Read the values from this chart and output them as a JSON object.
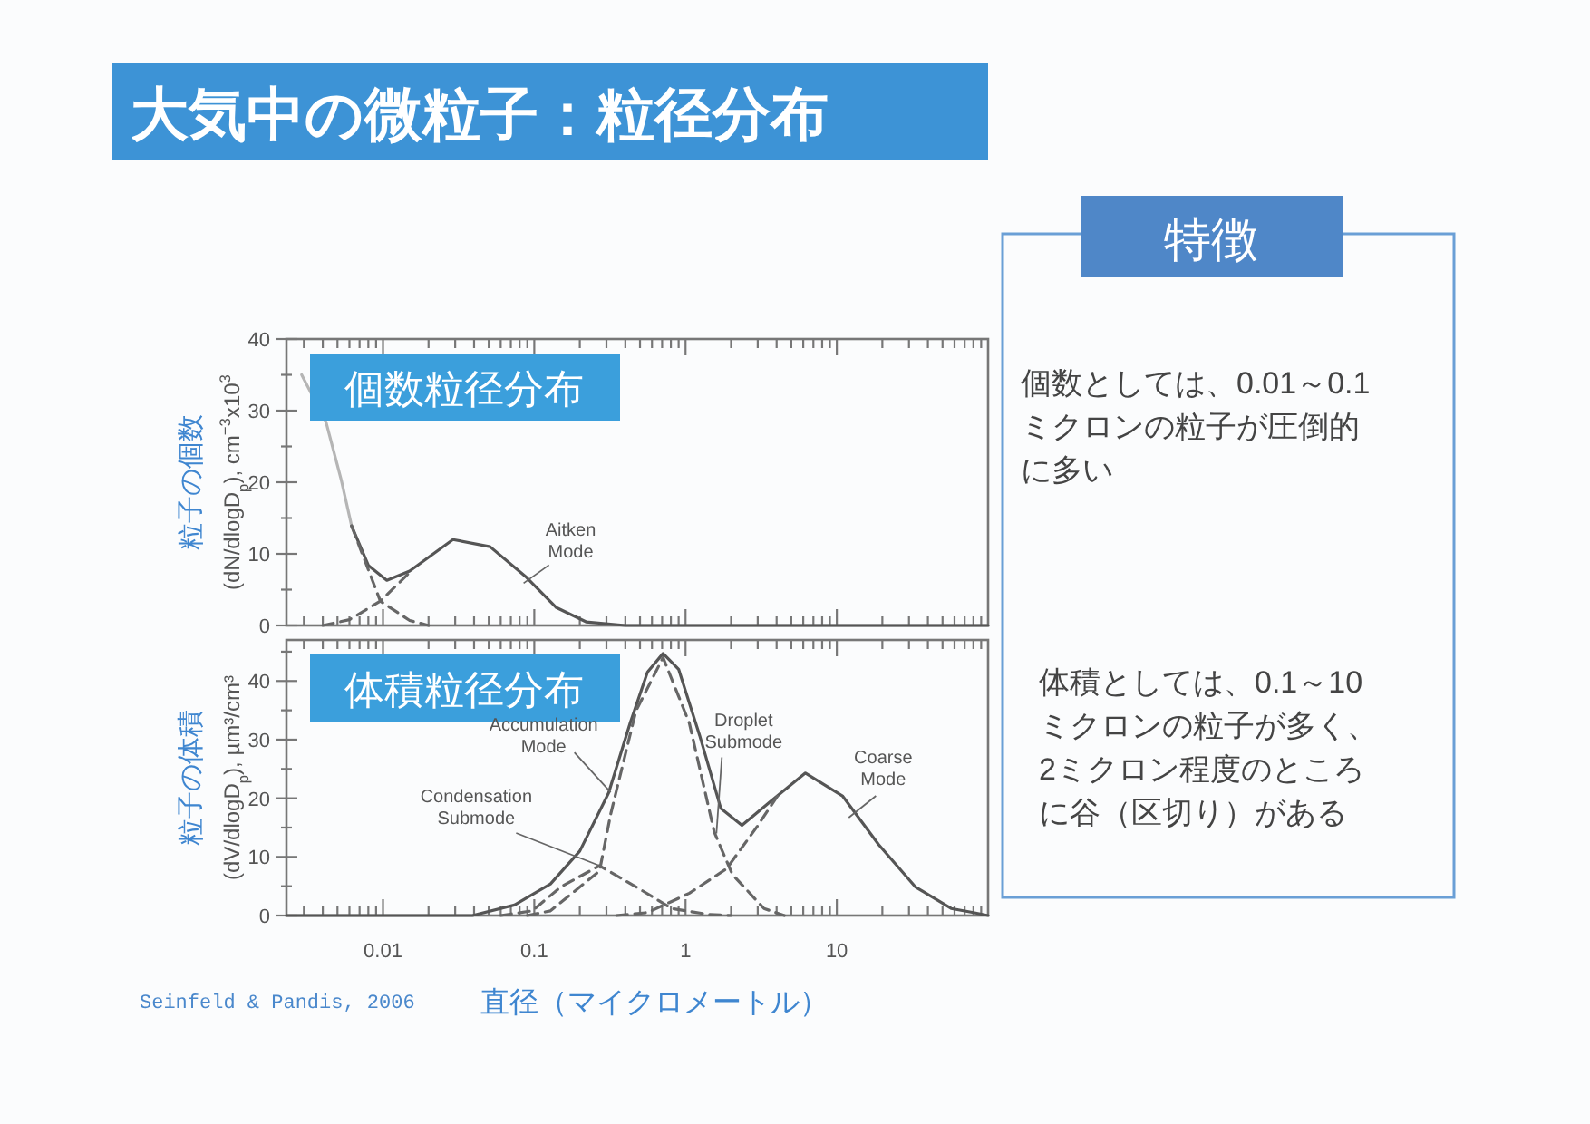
{
  "chart_data": [
    {
      "type": "line",
      "title": "大気中の微粒子：粒径分布",
      "subtitle": "個数粒径分布",
      "ylabel": "粒子の個数\n(dN/dlogD$_{p}$), cm$^{−3}$x10$^{3}$",
      "log": "x",
      "xlim": [
        0.0023,
        100
      ],
      "ylim": [
        0,
        40
      ],
      "tick_labels": "y",
      "xticks": [
        0.01,
        0.1,
        1,
        10,
        {
          "value": 0.003,
          "label": null
        },
        {
          "value": 0.004,
          "label": null
        },
        {
          "value": 0.005,
          "label": null
        },
        {
          "value": 0.006,
          "label": null
        },
        {
          "value": 0.007,
          "label": null
        },
        {
          "value": 0.008,
          "label": null
        },
        {
          "value": 0.009,
          "label": null
        },
        {
          "value": 0.02,
          "label": null
        },
        {
          "value": 0.03,
          "label": null
        },
        {
          "value": 0.04,
          "label": null
        },
        {
          "value": 0.05,
          "label": null
        },
        {
          "value": 0.06,
          "label": null
        },
        {
          "value": 0.07,
          "label": null
        },
        {
          "value": 0.08,
          "label": null
        },
        {
          "value": 0.09,
          "label": null
        },
        {
          "value": 0.2,
          "label": null
        },
        {
          "value": 0.3,
          "label": null
        },
        {
          "value": 0.4,
          "label": null
        },
        {
          "value": 0.5,
          "label": null
        },
        {
          "value": 0.6,
          "label": null
        },
        {
          "value": 0.7,
          "label": null
        },
        {
          "value": 0.8,
          "label": null
        },
        {
          "value": 0.9,
          "label": null
        },
        {
          "value": 2,
          "label": null
        },
        {
          "value": 3,
          "label": null
        },
        {
          "value": 4,
          "label": null
        },
        {
          "value": 5,
          "label": null
        },
        {
          "value": 6,
          "label": null
        },
        {
          "value": 7,
          "label": null
        },
        {
          "value": 8,
          "label": null
        },
        {
          "value": 9,
          "label": null
        },
        {
          "value": 20,
          "label": null
        },
        {
          "value": 30,
          "label": null
        },
        {
          "value": 40,
          "label": null
        },
        {
          "value": 50,
          "label": null
        },
        {
          "value": 60,
          "label": null
        },
        {
          "value": 70,
          "label": null
        },
        {
          "value": 80,
          "label": null
        },
        {
          "value": 90,
          "label": null
        }
      ],
      "yticks": [
        0,
        10,
        20,
        30,
        40,
        {
          "value": 5,
          "label": null
        },
        {
          "value": 15,
          "label": null
        },
        {
          "value": 25,
          "label": null
        },
        {
          "value": 35,
          "label": null
        }
      ],
      "series": [
        {
          "color": "#b5b5b5",
          "line_style": "solid",
          "x": [
            0.0029,
            0.0042,
            0.0053,
            0.0062
          ],
          "values": [
            35,
            28.4,
            20.3,
            13.9
          ]
        },
        {
          "color": "#555555",
          "line_style": "solid",
          "x": [
            0.0062,
            0.008,
            0.0106,
            0.015,
            0.029,
            0.051,
            0.089,
            0.14,
            0.22,
            0.4,
            1,
            10,
            100
          ],
          "values": [
            13.9,
            8.4,
            6.3,
            7.6,
            12,
            11,
            6.7,
            2.5,
            0.5,
            0,
            0,
            0,
            0
          ]
        },
        {
          "color": "#666666",
          "line_style": "dashed",
          "x": [
            0.0062,
            0.0096,
            0.015,
            0.02
          ],
          "values": [
            13.9,
            3.4,
            0.7,
            0
          ]
        },
        {
          "color": "#666666",
          "line_style": "dashed",
          "x": [
            0.004,
            0.006,
            0.0096,
            0.015
          ],
          "values": [
            0,
            0.8,
            3.4,
            7.4
          ]
        }
      ],
      "annotations": [
        {
          "text": "Aitken\nMode",
          "x": 0.085,
          "y": 5.9
        }
      ]
    },
    {
      "type": "line",
      "subtitle": "体積粒径分布",
      "xlabel": "直径（マイクロメートル）",
      "ylabel": "粒子の体積\n(dV/dlogD$_{p}$), µm³/cm³",
      "log": "x",
      "xlim": [
        0.0023,
        100
      ],
      "ylim": [
        0,
        47
      ],
      "xticks": [
        0.01,
        0.1,
        1,
        10,
        {
          "value": 0.003,
          "label": null
        },
        {
          "value": 0.004,
          "label": null
        },
        {
          "value": 0.005,
          "label": null
        },
        {
          "value": 0.006,
          "label": null
        },
        {
          "value": 0.007,
          "label": null
        },
        {
          "value": 0.008,
          "label": null
        },
        {
          "value": 0.009,
          "label": null
        },
        {
          "value": 0.02,
          "label": null
        },
        {
          "value": 0.03,
          "label": null
        },
        {
          "value": 0.04,
          "label": null
        },
        {
          "value": 0.05,
          "label": null
        },
        {
          "value": 0.06,
          "label": null
        },
        {
          "value": 0.07,
          "label": null
        },
        {
          "value": 0.08,
          "label": null
        },
        {
          "value": 0.09,
          "label": null
        },
        {
          "value": 0.2,
          "label": null
        },
        {
          "value": 0.3,
          "label": null
        },
        {
          "value": 0.4,
          "label": null
        },
        {
          "value": 0.5,
          "label": null
        },
        {
          "value": 0.6,
          "label": null
        },
        {
          "value": 0.7,
          "label": null
        },
        {
          "value": 0.8,
          "label": null
        },
        {
          "value": 0.9,
          "label": null
        },
        {
          "value": 2,
          "label": null
        },
        {
          "value": 3,
          "label": null
        },
        {
          "value": 4,
          "label": null
        },
        {
          "value": 5,
          "label": null
        },
        {
          "value": 6,
          "label": null
        },
        {
          "value": 7,
          "label": null
        },
        {
          "value": 8,
          "label": null
        },
        {
          "value": 9,
          "label": null
        },
        {
          "value": 20,
          "label": null
        },
        {
          "value": 30,
          "label": null
        },
        {
          "value": 40,
          "label": null
        },
        {
          "value": 50,
          "label": null
        },
        {
          "value": 60,
          "label": null
        },
        {
          "value": 70,
          "label": null
        },
        {
          "value": 80,
          "label": null
        },
        {
          "value": 90,
          "label": null
        }
      ],
      "yticks": [
        0,
        10,
        20,
        30,
        40,
        {
          "value": 5,
          "label": null
        },
        {
          "value": 15,
          "label": null
        },
        {
          "value": 25,
          "label": null
        },
        {
          "value": 35,
          "label": null
        },
        {
          "value": 45,
          "label": null
        }
      ],
      "series": [
        {
          "color": "#555555",
          "line_style": "solid",
          "x": [
            0.0023,
            0.039,
            0.074,
            0.128,
            0.2,
            0.31,
            0.43,
            0.56,
            0.71,
            0.9,
            1.24,
            1.71,
            2.36,
            3.58,
            6.2,
            10.9,
            18.9,
            33,
            57,
            80,
            100
          ],
          "values": [
            0,
            0,
            1.8,
            5.4,
            11,
            20.9,
            32.8,
            41.5,
            44.7,
            42,
            30.7,
            18.3,
            15.4,
            19.3,
            24.3,
            20.4,
            12.1,
            4.9,
            1.2,
            0.5,
            0
          ]
        },
        {
          "color": "#666666",
          "line_style": "dashed",
          "x": [
            0.06,
            0.097,
            0.15,
            0.27,
            0.47,
            0.81,
            1.4,
            2
          ],
          "values": [
            0,
            0.8,
            4.9,
            8.5,
            4.9,
            1.2,
            0.2,
            0
          ]
        },
        {
          "color": "#666666",
          "line_style": "dashed",
          "x": [
            0.09,
            0.128,
            0.27,
            0.32,
            0.47,
            0.71,
            1.06,
            1.55,
            2.04,
            3.3,
            4.5
          ],
          "values": [
            0,
            0.8,
            7.6,
            17.3,
            34.9,
            44,
            32.8,
            14.2,
            7,
            1.2,
            0
          ]
        },
        {
          "color": "#666666",
          "line_style": "dashed",
          "x": [
            0.35,
            0.56,
            1.06,
            1.87,
            2.98,
            4.2
          ],
          "values": [
            0,
            0.5,
            3.8,
            8,
            15.2,
            21
          ]
        }
      ],
      "annotations": [
        {
          "text": "Accumulation\nMode",
          "x": 0.32,
          "y": 21
        },
        {
          "text": "Condensation\nSubmode",
          "x": 0.27,
          "y": 8.5
        },
        {
          "text": "Droplet\nSubmode",
          "x": 1.6,
          "y": 14
        },
        {
          "text": "Coarse\nMode",
          "x": 12,
          "y": 16.7
        },
        "Seinfeld & Pandis, 2006"
      ]
    },
    {
      "type": "other",
      "title": "特徴",
      "annotations": [
        "個数としては、0.01～0.1ミクロンの粒子が圧倒的に多い",
        "体積としては、0.1～10ミクロンの粒子が多く、2ミクロン程度のところに谷（区切り）がある"
      ]
    }
  ]
}
